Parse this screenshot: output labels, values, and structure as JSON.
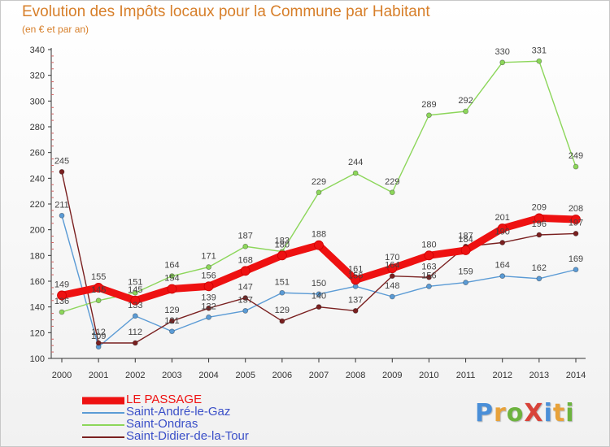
{
  "title": "Evolution des Impôts locaux pour la Commune par Habitant",
  "subtitle": "(en € et par an)",
  "logo": {
    "text": "ProXiti",
    "letter_colors": [
      "#4a8fd8",
      "#e8a23a",
      "#6db33f",
      "#d8433a",
      "#4a8fd8",
      "#e8a23a",
      "#6db33f"
    ]
  },
  "chart_data": {
    "type": "line",
    "x": [
      "2000",
      "2001",
      "2002",
      "2003",
      "2004",
      "2005",
      "2006",
      "2007",
      "2008",
      "2009",
      "2010",
      "2011",
      "2012",
      "2013",
      "2014"
    ],
    "ylim": [
      100,
      340
    ],
    "yticks": [
      100,
      120,
      140,
      160,
      180,
      200,
      220,
      240,
      260,
      280,
      300,
      320,
      340
    ],
    "grid": false,
    "legend_position": "bottom-left",
    "series": [
      {
        "name": "LE PASSAGE",
        "color": "#ee1111",
        "emphasis": true,
        "values": [
          149,
          155,
          145,
          154,
          156,
          168,
          180,
          188,
          161,
          170,
          180,
          184,
          201,
          209,
          208
        ]
      },
      {
        "name": "Saint-André-le-Gaz",
        "color": "#5b9bd5",
        "values": [
          211,
          109,
          133,
          121,
          132,
          137,
          151,
          150,
          156,
          148,
          156,
          159,
          164,
          162,
          169
        ]
      },
      {
        "name": "Saint-Ondras",
        "color": "#8cd65a",
        "values": [
          136,
          145,
          151,
          164,
          171,
          187,
          183,
          229,
          244,
          229,
          289,
          292,
          330,
          331,
          249
        ]
      },
      {
        "name": "Saint-Didier-de-la-Tour",
        "color": "#7a2020",
        "values": [
          245,
          112,
          112,
          129,
          139,
          147,
          129,
          140,
          137,
          164,
          163,
          187,
          190,
          196,
          197
        ]
      }
    ]
  }
}
